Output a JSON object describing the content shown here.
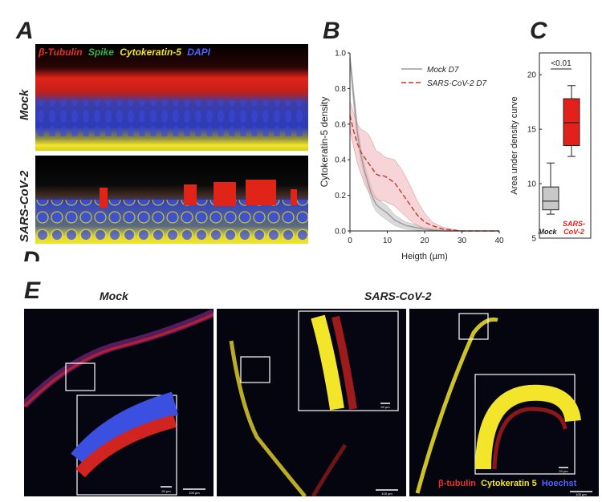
{
  "panel_a": {
    "letter": "A",
    "legend": {
      "red": "β-Tubulin",
      "green": "Spike",
      "yellow": "Cytokeratin-5",
      "blue": "DAPI"
    },
    "row_labels": [
      "Mock",
      "SARS-CoV-2"
    ]
  },
  "panel_d_letter": "D",
  "panel_e": {
    "letter": "E",
    "group_labels": [
      "Mock",
      "SARS-CoV-2"
    ],
    "legend": {
      "red": "β-tubulin",
      "yellow": "Cytokeratin 5",
      "blue": "Hoechst"
    },
    "scale_labels": [
      "20 µm",
      "100 µm",
      "20 µm",
      "100 µm",
      "20 µm",
      "100 µm"
    ]
  },
  "colors": {
    "red": "#e8312a",
    "green": "#2fb44a",
    "yellow": "#f2e52a",
    "blue": "#3b4fe0",
    "mock_curve": "#9a9a9a",
    "sars_curve": "#c0392b",
    "sars_band": "#f2b8bd",
    "mock_band": "#cfcfcf",
    "box_red": "#e3201b",
    "box_gray": "#c8c8c8"
  },
  "chart_data": [
    {
      "panel": "B",
      "type": "line",
      "xlabel": "Heigth (µm)",
      "ylabel": "Cytokeratin-5 density",
      "xlim": [
        0,
        40
      ],
      "ylim": [
        0,
        1.0
      ],
      "xticks": [
        0,
        10,
        20,
        30,
        40
      ],
      "yticks": [
        0.0,
        0.2,
        0.4,
        0.6,
        0.8,
        1.0
      ],
      "legend_position": "top-right",
      "series": [
        {
          "name": "Mock D7",
          "style": "solid",
          "x": [
            0,
            1,
            2,
            3,
            4,
            5,
            6,
            7,
            8,
            10,
            12,
            15,
            20,
            25,
            30,
            40
          ],
          "y": [
            0.97,
            0.75,
            0.55,
            0.42,
            0.33,
            0.26,
            0.19,
            0.15,
            0.13,
            0.1,
            0.06,
            0.03,
            0.01,
            0.0,
            0.0,
            0.0
          ],
          "lower": [
            0.95,
            0.7,
            0.5,
            0.38,
            0.29,
            0.22,
            0.15,
            0.11,
            0.09,
            0.06,
            0.03,
            0.01,
            0.0,
            0.0,
            0.0,
            0.0
          ],
          "upper": [
            1.0,
            0.8,
            0.6,
            0.46,
            0.37,
            0.3,
            0.23,
            0.19,
            0.17,
            0.14,
            0.09,
            0.05,
            0.02,
            0.01,
            0.0,
            0.0
          ]
        },
        {
          "name": "SARS-CoV-2 D7",
          "style": "dashed",
          "x": [
            0,
            1,
            2,
            3,
            4,
            5,
            6,
            7,
            8,
            9,
            10,
            12,
            14,
            16,
            18,
            20,
            22,
            25,
            30,
            40
          ],
          "y": [
            0.65,
            0.56,
            0.49,
            0.44,
            0.41,
            0.38,
            0.35,
            0.32,
            0.31,
            0.31,
            0.3,
            0.27,
            0.21,
            0.15,
            0.09,
            0.05,
            0.03,
            0.01,
            0.0,
            0.0
          ],
          "lower": [
            0.57,
            0.47,
            0.38,
            0.32,
            0.26,
            0.22,
            0.2,
            0.18,
            0.17,
            0.17,
            0.16,
            0.14,
            0.1,
            0.06,
            0.03,
            0.01,
            0.0,
            0.0,
            0.0,
            0.0
          ],
          "upper": [
            0.73,
            0.66,
            0.6,
            0.57,
            0.56,
            0.54,
            0.5,
            0.45,
            0.44,
            0.42,
            0.41,
            0.4,
            0.34,
            0.26,
            0.17,
            0.1,
            0.05,
            0.02,
            0.0,
            0.0
          ]
        }
      ]
    },
    {
      "panel": "C",
      "type": "box",
      "ylabel": "Area under density curve",
      "ylim": [
        5,
        22
      ],
      "yticks": [
        5,
        10,
        15,
        20
      ],
      "annotation": "<0.01",
      "categories": [
        "Mock",
        "SARS-CoV-2"
      ],
      "boxes": [
        {
          "name": "Mock",
          "min": 7.2,
          "q1": 7.6,
          "median": 8.4,
          "q3": 9.7,
          "max": 11.9
        },
        {
          "name": "SARS-CoV-2",
          "min": 12.5,
          "q1": 13.5,
          "median": 15.6,
          "q3": 17.8,
          "max": 19.0
        }
      ]
    }
  ]
}
